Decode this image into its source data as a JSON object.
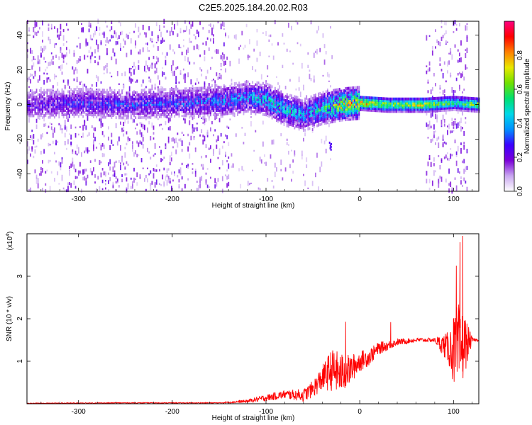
{
  "figure": {
    "title": "C2E5.2025.184.20.02.R03"
  },
  "chart_data": [
    {
      "type": "heatmap",
      "xlabel": "Height of straight line (km)",
      "ylabel": "Frequency (Hz)",
      "xlim": [
        -355,
        127
      ],
      "ylim": [
        -50,
        48
      ],
      "xticks": [
        -300,
        -200,
        -100,
        0,
        100
      ],
      "yticks": [
        -40,
        -20,
        0,
        20,
        40
      ],
      "colorbar": {
        "label": "Normalized spectral amplitude",
        "range": [
          0,
          1
        ],
        "ticks": [
          0.0,
          0.2,
          0.4,
          0.6,
          0.8
        ],
        "colormap": [
          "#ffffff",
          "#c9a6f0",
          "#7a00d8",
          "#3b00ff",
          "#0090ff",
          "#00d8e8",
          "#00e070",
          "#70e000",
          "#e8e800",
          "#ff8000",
          "#ff0000",
          "#ff0080"
        ]
      },
      "ridge_profile": [
        {
          "x": -355,
          "f": 0,
          "amp": 0.25
        },
        {
          "x": -300,
          "f": 1,
          "amp": 0.3
        },
        {
          "x": -250,
          "f": 0,
          "amp": 0.32
        },
        {
          "x": -200,
          "f": 1,
          "amp": 0.33
        },
        {
          "x": -150,
          "f": 2,
          "amp": 0.38
        },
        {
          "x": -120,
          "f": 4,
          "amp": 0.42
        },
        {
          "x": -100,
          "f": 3,
          "amp": 0.5
        },
        {
          "x": -80,
          "f": -3,
          "amp": 0.5
        },
        {
          "x": -60,
          "f": -6,
          "amp": 0.45
        },
        {
          "x": -40,
          "f": -2,
          "amp": 0.55
        },
        {
          "x": -20,
          "f": 0,
          "amp": 0.8
        },
        {
          "x": 0,
          "f": 1,
          "amp": 0.85
        },
        {
          "x": 30,
          "f": 0,
          "amp": 0.7
        },
        {
          "x": 70,
          "f": 0,
          "amp": 0.75
        },
        {
          "x": 100,
          "f": 1,
          "amp": 0.55
        },
        {
          "x": 127,
          "f": 0,
          "amp": 0.7
        }
      ],
      "noise_regions": [
        {
          "x_from": -355,
          "x_to": -140,
          "density": "high"
        },
        {
          "x_from": -140,
          "x_to": -30,
          "density": "medium"
        },
        {
          "x_from": 70,
          "x_to": 115,
          "density": "high"
        }
      ],
      "isolated_feature": {
        "x": -32,
        "f": -23
      }
    },
    {
      "type": "line",
      "xlabel": "Height of straight line (km)",
      "ylabel": "SNR (10 * v/v)",
      "scale_label": "(x10^4)",
      "scale_base": "(x10",
      "scale_exp": "4",
      "scale_close": ")",
      "xlim": [
        -355,
        127
      ],
      "ylim": [
        0,
        4
      ],
      "xticks": [
        -300,
        -200,
        -100,
        0,
        100
      ],
      "yticks": [
        1,
        2,
        3
      ],
      "color": "#ff0000",
      "series": [
        {
          "envelope": [
            {
              "x": -355,
              "y": 0.01,
              "spread": 0.01
            },
            {
              "x": -250,
              "y": 0.02,
              "spread": 0.01
            },
            {
              "x": -150,
              "y": 0.02,
              "spread": 0.01
            },
            {
              "x": -120,
              "y": 0.06,
              "spread": 0.04
            },
            {
              "x": -100,
              "y": 0.14,
              "spread": 0.08
            },
            {
              "x": -80,
              "y": 0.22,
              "spread": 0.1
            },
            {
              "x": -60,
              "y": 0.2,
              "spread": 0.15
            },
            {
              "x": -50,
              "y": 0.35,
              "spread": 0.2
            },
            {
              "x": -40,
              "y": 0.6,
              "spread": 0.3
            },
            {
              "x": -30,
              "y": 0.8,
              "spread": 0.5
            },
            {
              "x": -20,
              "y": 0.7,
              "spread": 0.5
            },
            {
              "x": -10,
              "y": 0.8,
              "spread": 0.35
            },
            {
              "x": 0,
              "y": 1.0,
              "spread": 0.25
            },
            {
              "x": 10,
              "y": 1.1,
              "spread": 0.2
            },
            {
              "x": 20,
              "y": 1.3,
              "spread": 0.15
            },
            {
              "x": 40,
              "y": 1.45,
              "spread": 0.08
            },
            {
              "x": 60,
              "y": 1.5,
              "spread": 0.05
            },
            {
              "x": 80,
              "y": 1.5,
              "spread": 0.05
            },
            {
              "x": 95,
              "y": 1.3,
              "spread": 0.4
            },
            {
              "x": 105,
              "y": 1.2,
              "spread": 1.2
            },
            {
              "x": 112,
              "y": 1.4,
              "spread": 0.7
            },
            {
              "x": 120,
              "y": 1.5,
              "spread": 0.05
            },
            {
              "x": 127,
              "y": 1.5,
              "spread": 0.03
            }
          ],
          "peaks": [
            {
              "x": -15,
              "y": 1.93
            },
            {
              "x": 33,
              "y": 1.92
            },
            {
              "x": 103,
              "y": 3.25
            },
            {
              "x": 107,
              "y": 3.8
            },
            {
              "x": 110,
              "y": 3.95
            },
            {
              "x": 100,
              "y": 2.0
            }
          ]
        }
      ]
    }
  ]
}
